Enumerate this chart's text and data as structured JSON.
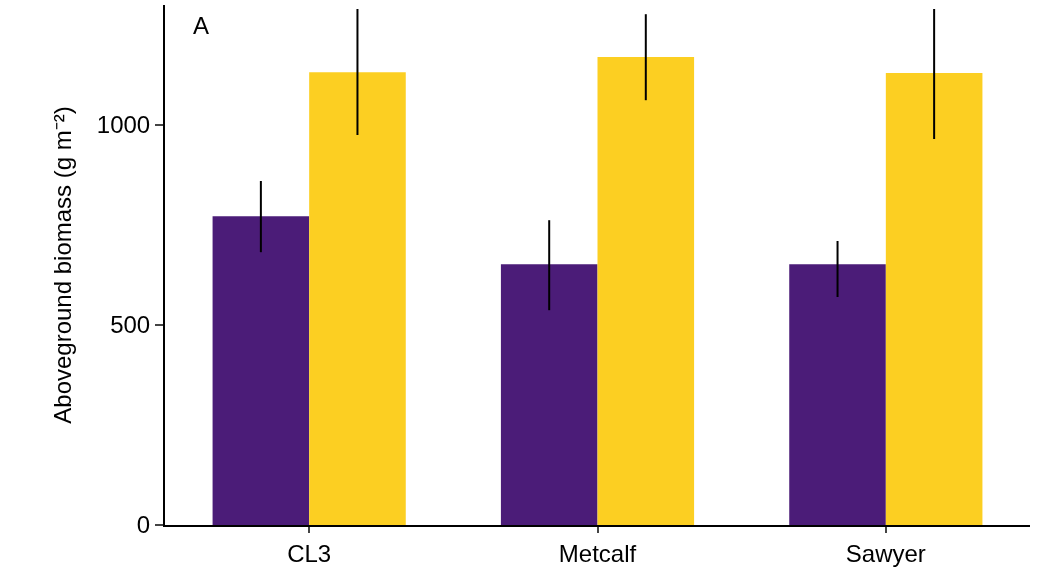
{
  "chart_data": {
    "type": "bar",
    "ylabel": "Aboveground biomass (g m⁻²)",
    "annotations": [
      "A"
    ],
    "categories": [
      "CL3",
      "Metcalf",
      "Sawyer"
    ],
    "series": [
      {
        "color": "#4b1c78",
        "values": [
          772,
          652,
          652
        ],
        "errors": [
          [
            682,
            860
          ],
          [
            537,
            762
          ],
          [
            570,
            710
          ]
        ]
      },
      {
        "color": "#fccf22",
        "values": [
          1132,
          1170,
          1130
        ],
        "errors": [
          [
            975,
            1290
          ],
          [
            1062,
            1277
          ],
          [
            965,
            1290
          ]
        ]
      }
    ],
    "ylim": [
      0,
      1300
    ],
    "yticks": [
      0,
      500,
      1000
    ],
    "grid": false
  }
}
